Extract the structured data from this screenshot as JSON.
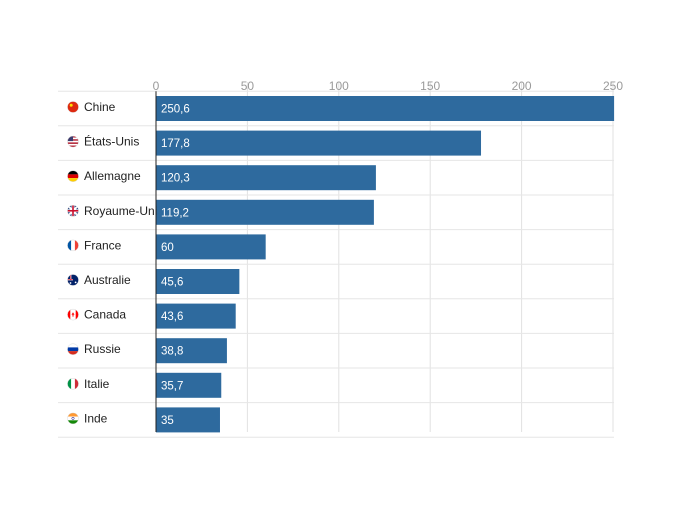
{
  "chart_data": {
    "type": "bar",
    "orientation": "horizontal",
    "title": "",
    "xlabel": "",
    "ylabel": "",
    "xlim": [
      0,
      250
    ],
    "xticks": [
      0,
      50,
      100,
      150,
      200,
      250
    ],
    "tick_labels": [
      "0",
      "50",
      "100",
      "150",
      "200",
      "250"
    ],
    "grid": true,
    "bar_color": "#2e6a9e",
    "categories": [
      {
        "name": "Chine",
        "flag": "china-flag-icon",
        "value": 250.6,
        "label": "250,6"
      },
      {
        "name": "États-Unis",
        "flag": "usa-flag-icon",
        "value": 177.8,
        "label": "177,8"
      },
      {
        "name": "Allemagne",
        "flag": "germany-flag-icon",
        "value": 120.3,
        "label": "120,3"
      },
      {
        "name": "Royaume-Uni",
        "flag": "uk-flag-icon",
        "value": 119.2,
        "label": "119,2"
      },
      {
        "name": "France",
        "flag": "france-flag-icon",
        "value": 60,
        "label": "60"
      },
      {
        "name": "Australie",
        "flag": "australia-flag-icon",
        "value": 45.6,
        "label": "45,6"
      },
      {
        "name": "Canada",
        "flag": "canada-flag-icon",
        "value": 43.6,
        "label": "43,6"
      },
      {
        "name": "Russie",
        "flag": "russia-flag-icon",
        "value": 38.8,
        "label": "38,8"
      },
      {
        "name": "Italie",
        "flag": "italy-flag-icon",
        "value": 35.7,
        "label": "35,7"
      },
      {
        "name": "Inde",
        "flag": "india-flag-icon",
        "value": 35,
        "label": "35"
      }
    ]
  }
}
